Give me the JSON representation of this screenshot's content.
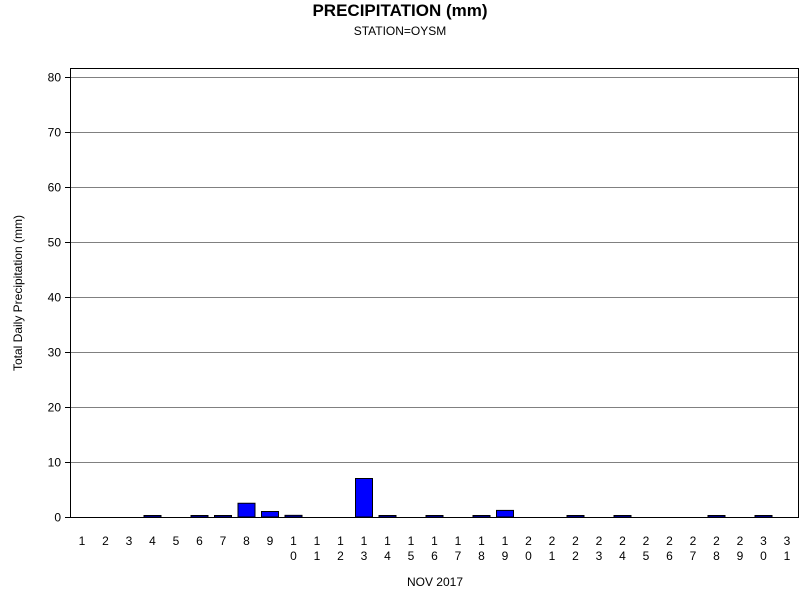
{
  "chart_data": {
    "type": "bar",
    "title": "PRECIPITATION (mm)",
    "subtitle": "STATION=OYSM",
    "xlabel": "NOV 2017",
    "ylabel": "Total Daily Precipitation (mm)",
    "ylim": [
      0,
      80
    ],
    "yticks": [
      0,
      10,
      20,
      30,
      40,
      50,
      60,
      70,
      80
    ],
    "grid": true,
    "categories": [
      "1",
      "2",
      "3",
      "4",
      "5",
      "6",
      "7",
      "8",
      "9",
      "10",
      "11",
      "12",
      "13",
      "14",
      "15",
      "16",
      "17",
      "18",
      "19",
      "20",
      "21",
      "22",
      "23",
      "24",
      "25",
      "26",
      "27",
      "28",
      "29",
      "30",
      "31"
    ],
    "values": [
      null,
      null,
      null,
      0.1,
      null,
      0.1,
      0.1,
      2.5,
      1.0,
      0.3,
      null,
      null,
      7.0,
      0.1,
      null,
      0.1,
      null,
      0.1,
      1.2,
      null,
      null,
      0.1,
      null,
      0.1,
      null,
      null,
      null,
      0.1,
      null,
      0.1,
      null
    ],
    "bar_color": "#0000ff",
    "grid_color": "#808080"
  }
}
